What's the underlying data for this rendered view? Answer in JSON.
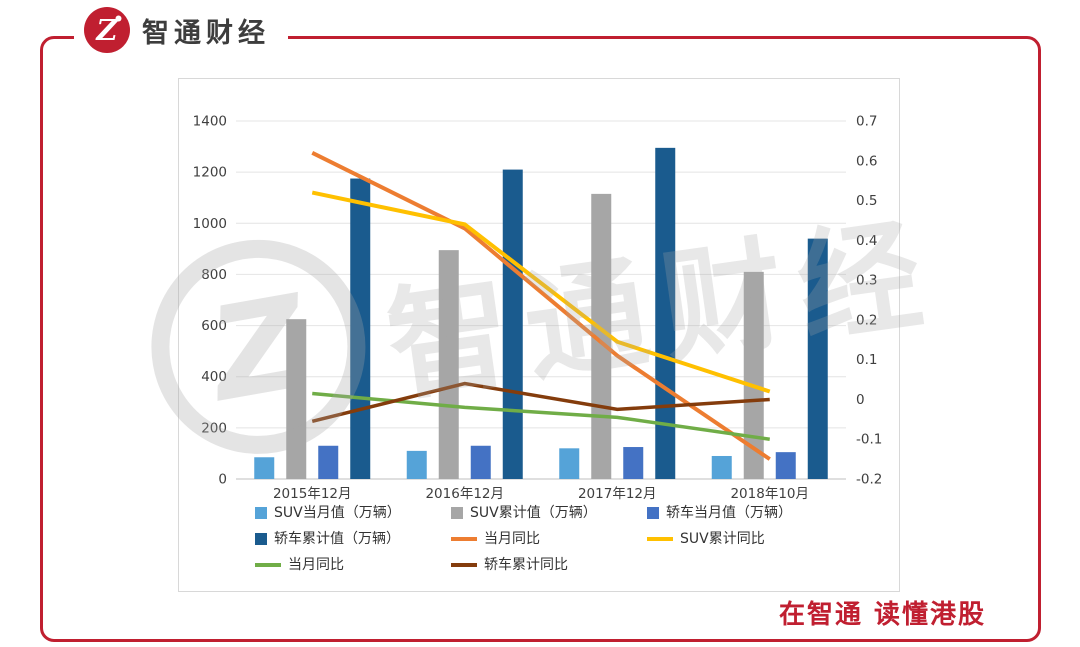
{
  "brand": {
    "logo_text": "智通财经",
    "slogan": "在智通 读懂港股",
    "accent_color": "#C01F30"
  },
  "watermark": {
    "text": "智通财经",
    "letter": "Z"
  },
  "chart_data": {
    "type": "combo-bar-line",
    "categories": [
      "2015年12月",
      "2016年12月",
      "2017年12月",
      "2018年10月"
    ],
    "left_axis": {
      "min": 0,
      "max": 1400,
      "step": 200
    },
    "right_axis": {
      "min": -0.2,
      "max": 0.7,
      "step": 0.1
    },
    "grid": true,
    "legend_position": "bottom",
    "bar_series": [
      {
        "name": "SUV当月值（万辆）",
        "color": "#55A3D8",
        "values": [
          85,
          110,
          120,
          90
        ]
      },
      {
        "name": "SUV累计值（万辆）",
        "color": "#A6A6A6",
        "values": [
          625,
          895,
          1115,
          810
        ]
      },
      {
        "name": "轿车当月值（万辆）",
        "color": "#4472C4",
        "values": [
          130,
          130,
          125,
          105
        ]
      },
      {
        "name": "轿车累计值（万辆）",
        "color": "#1A5B8E",
        "values": [
          1175,
          1210,
          1295,
          940
        ]
      }
    ],
    "line_series": [
      {
        "name": "当月同比",
        "color": "#ED7D31",
        "values": [
          0.62,
          0.43,
          0.11,
          -0.15
        ]
      },
      {
        "name": "SUV累计同比",
        "color": "#FFC000",
        "values": [
          0.52,
          0.44,
          0.145,
          0.02
        ]
      },
      {
        "name": "当月同比",
        "color": "#70AD47",
        "values": [
          0.015,
          -0.02,
          -0.045,
          -0.1
        ]
      },
      {
        "name": "轿车累计同比",
        "color": "#843C0C",
        "values": [
          -0.055,
          0.04,
          -0.025,
          0.0
        ]
      }
    ],
    "legend_rows": [
      [
        0,
        1,
        2
      ],
      [
        3,
        4,
        5
      ],
      [
        6,
        7
      ]
    ]
  }
}
